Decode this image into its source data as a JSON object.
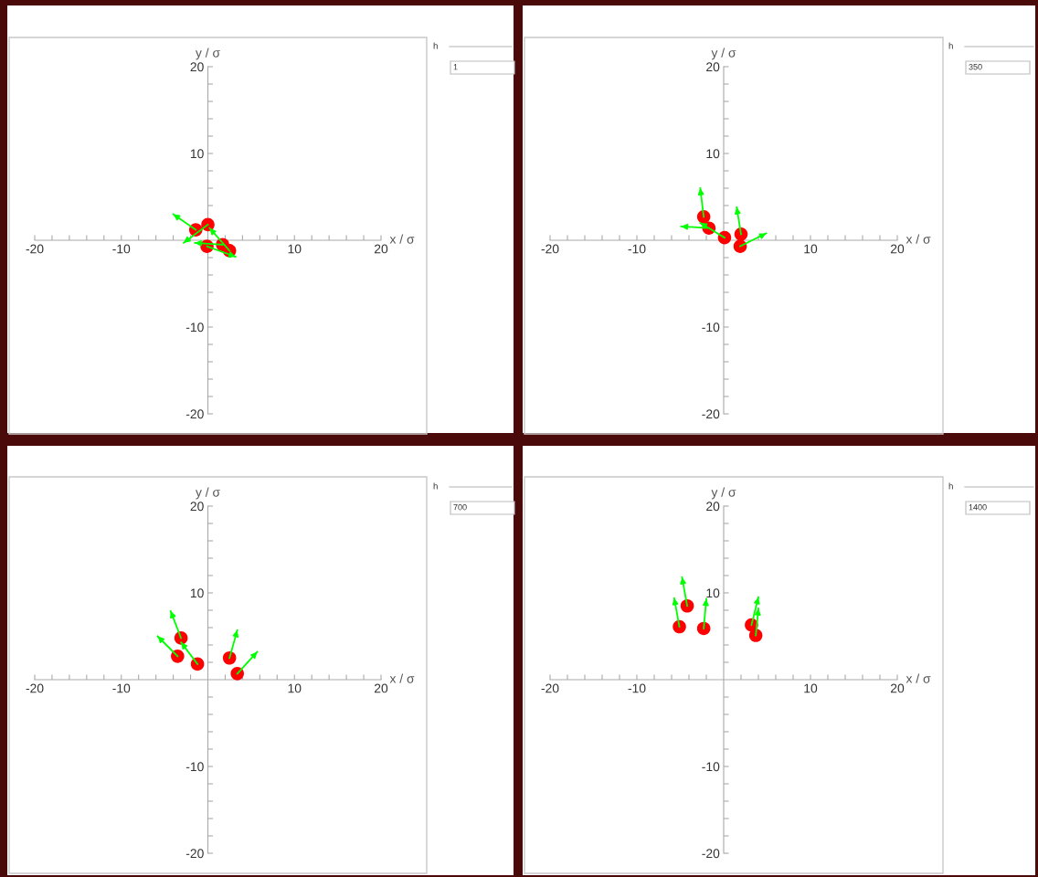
{
  "chart_data": [
    {
      "type": "scatter",
      "xlabel": "x / σ",
      "ylabel": "y / σ",
      "xlim": [
        -20,
        20
      ],
      "ylim": [
        -20,
        20
      ],
      "xticks": [
        -20,
        {
          "value": -18,
          "label": null
        },
        {
          "value": -16,
          "label": null
        },
        {
          "value": -14,
          "label": null
        },
        {
          "value": -12,
          "label": null
        },
        -10,
        {
          "value": -8,
          "label": null
        },
        {
          "value": -6,
          "label": null
        },
        {
          "value": -4,
          "label": null
        },
        {
          "value": -2,
          "label": null
        },
        {
          "value": 2,
          "label": null
        },
        {
          "value": 4,
          "label": null
        },
        {
          "value": 6,
          "label": null
        },
        {
          "value": 8,
          "label": null
        },
        10,
        {
          "value": 12,
          "label": null
        },
        {
          "value": 14,
          "label": null
        },
        {
          "value": 16,
          "label": null
        },
        {
          "value": 18,
          "label": null
        },
        20
      ],
      "yticks": [
        -20,
        {
          "value": -18,
          "label": null
        },
        {
          "value": -16,
          "label": null
        },
        {
          "value": -14,
          "label": null
        },
        {
          "value": -12,
          "label": null
        },
        -10,
        {
          "value": -8,
          "label": null
        },
        {
          "value": -6,
          "label": null
        },
        {
          "value": -4,
          "label": null
        },
        {
          "value": -2,
          "label": null
        },
        {
          "value": 2,
          "label": null
        },
        {
          "value": 4,
          "label": null
        },
        {
          "value": 6,
          "label": null
        },
        {
          "value": 8,
          "label": null
        },
        10,
        {
          "value": 12,
          "label": null
        },
        {
          "value": 14,
          "label": null
        },
        {
          "value": 16,
          "label": null
        },
        {
          "value": 18,
          "label": null
        },
        20
      ],
      "grid": false,
      "annotations": [
        "h",
        "1"
      ],
      "series": [
        {
          "type": "line",
          "color": "#00ff00",
          "x": [
            -1.4,
            -4.0,
            null,
            0,
            -2.8,
            null,
            -0.1,
            3.2,
            null,
            1.7,
            -1.5,
            null,
            2.5,
            0.2
          ],
          "values": [
            1.2,
            3.0,
            null,
            1.8,
            -0.3,
            null,
            -0.7,
            -1.9,
            null,
            -0.5,
            -0.3,
            null,
            -1.2,
            1.4
          ]
        },
        {
          "type": "scatter",
          "marker": "circle",
          "color": "#ff0000",
          "x": [
            -1.4,
            0,
            -0.1,
            1.7,
            2.5
          ],
          "values": [
            1.2,
            1.8,
            -0.7,
            -0.5,
            -1.2
          ]
        }
      ]
    },
    {
      "type": "scatter",
      "xlabel": "x / σ",
      "ylabel": "y / σ",
      "xlim": [
        -20,
        20
      ],
      "ylim": [
        -20,
        20
      ],
      "xticks": [
        -20,
        {
          "value": -18,
          "label": null
        },
        {
          "value": -16,
          "label": null
        },
        {
          "value": -14,
          "label": null
        },
        {
          "value": -12,
          "label": null
        },
        -10,
        {
          "value": -8,
          "label": null
        },
        {
          "value": -6,
          "label": null
        },
        {
          "value": -4,
          "label": null
        },
        {
          "value": -2,
          "label": null
        },
        {
          "value": 2,
          "label": null
        },
        {
          "value": 4,
          "label": null
        },
        {
          "value": 6,
          "label": null
        },
        {
          "value": 8,
          "label": null
        },
        10,
        {
          "value": 12,
          "label": null
        },
        {
          "value": 14,
          "label": null
        },
        {
          "value": 16,
          "label": null
        },
        {
          "value": 18,
          "label": null
        },
        20
      ],
      "yticks": [
        -20,
        {
          "value": -18,
          "label": null
        },
        {
          "value": -16,
          "label": null
        },
        {
          "value": -14,
          "label": null
        },
        {
          "value": -12,
          "label": null
        },
        -10,
        {
          "value": -8,
          "label": null
        },
        {
          "value": -6,
          "label": null
        },
        {
          "value": -4,
          "label": null
        },
        {
          "value": -2,
          "label": null
        },
        {
          "value": 2,
          "label": null
        },
        {
          "value": 4,
          "label": null
        },
        {
          "value": 6,
          "label": null
        },
        {
          "value": 8,
          "label": null
        },
        10,
        {
          "value": 12,
          "label": null
        },
        {
          "value": 14,
          "label": null
        },
        {
          "value": 16,
          "label": null
        },
        {
          "value": 18,
          "label": null
        },
        20
      ],
      "grid": false,
      "annotations": [
        "h",
        "350"
      ],
      "series": [
        {
          "type": "line",
          "color": "#00ff00",
          "x": [
            -2.3,
            -2.7,
            null,
            -1.7,
            -4.9,
            null,
            0.1,
            -2.7,
            null,
            2.0,
            1.5,
            null,
            1.9,
            4.9
          ],
          "values": [
            2.7,
            6.0,
            null,
            1.4,
            1.6,
            null,
            0.3,
            2.0,
            null,
            0.7,
            3.8,
            null,
            -0.7,
            0.8
          ]
        },
        {
          "type": "scatter",
          "marker": "circle",
          "color": "#ff0000",
          "x": [
            -2.3,
            -1.7,
            0.1,
            2.0,
            1.9
          ],
          "values": [
            2.7,
            1.4,
            0.3,
            0.7,
            -0.7
          ]
        }
      ]
    },
    {
      "type": "scatter",
      "xlabel": "x / σ",
      "ylabel": "y / σ",
      "xlim": [
        -20,
        20
      ],
      "ylim": [
        -20,
        20
      ],
      "xticks": [
        -20,
        {
          "value": -18,
          "label": null
        },
        {
          "value": -16,
          "label": null
        },
        {
          "value": -14,
          "label": null
        },
        {
          "value": -12,
          "label": null
        },
        -10,
        {
          "value": -8,
          "label": null
        },
        {
          "value": -6,
          "label": null
        },
        {
          "value": -4,
          "label": null
        },
        {
          "value": -2,
          "label": null
        },
        {
          "value": 2,
          "label": null
        },
        {
          "value": 4,
          "label": null
        },
        {
          "value": 6,
          "label": null
        },
        {
          "value": 8,
          "label": null
        },
        10,
        {
          "value": 12,
          "label": null
        },
        {
          "value": 14,
          "label": null
        },
        {
          "value": 16,
          "label": null
        },
        {
          "value": 18,
          "label": null
        },
        20
      ],
      "yticks": [
        -20,
        {
          "value": -18,
          "label": null
        },
        {
          "value": -16,
          "label": null
        },
        {
          "value": -14,
          "label": null
        },
        {
          "value": -12,
          "label": null
        },
        -10,
        {
          "value": -8,
          "label": null
        },
        {
          "value": -6,
          "label": null
        },
        {
          "value": -4,
          "label": null
        },
        {
          "value": -2,
          "label": null
        },
        {
          "value": 2,
          "label": null
        },
        {
          "value": 4,
          "label": null
        },
        {
          "value": 6,
          "label": null
        },
        {
          "value": 8,
          "label": null
        },
        10,
        {
          "value": 12,
          "label": null
        },
        {
          "value": 14,
          "label": null
        },
        {
          "value": 16,
          "label": null
        },
        {
          "value": 18,
          "label": null
        },
        20
      ],
      "grid": false,
      "annotations": [
        "h",
        "700"
      ],
      "series": [
        {
          "type": "line",
          "color": "#00ff00",
          "x": [
            -3.1,
            -4.3,
            null,
            -3.5,
            -5.8,
            null,
            -1.2,
            -3.1,
            null,
            2.5,
            3.4,
            null,
            3.4,
            5.7
          ],
          "values": [
            4.8,
            7.9,
            null,
            2.7,
            5.0,
            null,
            1.8,
            4.3,
            null,
            2.5,
            5.7,
            null,
            0.7,
            3.2
          ]
        },
        {
          "type": "scatter",
          "marker": "circle",
          "color": "#ff0000",
          "x": [
            -3.1,
            -3.5,
            -1.2,
            2.5,
            3.4
          ],
          "values": [
            4.8,
            2.7,
            1.8,
            2.5,
            0.7
          ]
        }
      ]
    },
    {
      "type": "scatter",
      "xlabel": "x / σ",
      "ylabel": "y / σ",
      "xlim": [
        -20,
        20
      ],
      "ylim": [
        -20,
        20
      ],
      "xticks": [
        -20,
        {
          "value": -18,
          "label": null
        },
        {
          "value": -16,
          "label": null
        },
        {
          "value": -14,
          "label": null
        },
        {
          "value": -12,
          "label": null
        },
        -10,
        {
          "value": -8,
          "label": null
        },
        {
          "value": -6,
          "label": null
        },
        {
          "value": -4,
          "label": null
        },
        {
          "value": -2,
          "label": null
        },
        {
          "value": 2,
          "label": null
        },
        {
          "value": 4,
          "label": null
        },
        {
          "value": 6,
          "label": null
        },
        {
          "value": 8,
          "label": null
        },
        10,
        {
          "value": 12,
          "label": null
        },
        {
          "value": 14,
          "label": null
        },
        {
          "value": 16,
          "label": null
        },
        {
          "value": 18,
          "label": null
        },
        20
      ],
      "yticks": [
        -20,
        {
          "value": -18,
          "label": null
        },
        {
          "value": -16,
          "label": null
        },
        {
          "value": -14,
          "label": null
        },
        {
          "value": -12,
          "label": null
        },
        -10,
        {
          "value": -8,
          "label": null
        },
        {
          "value": -6,
          "label": null
        },
        {
          "value": -4,
          "label": null
        },
        {
          "value": -2,
          "label": null
        },
        {
          "value": 2,
          "label": null
        },
        {
          "value": 4,
          "label": null
        },
        {
          "value": 6,
          "label": null
        },
        {
          "value": 8,
          "label": null
        },
        10,
        {
          "value": 12,
          "label": null
        },
        {
          "value": 14,
          "label": null
        },
        {
          "value": 16,
          "label": null
        },
        {
          "value": 18,
          "label": null
        },
        20
      ],
      "grid": false,
      "annotations": [
        "h",
        "1400"
      ],
      "series": [
        {
          "type": "line",
          "color": "#00ff00",
          "x": [
            -4.2,
            -4.8,
            null,
            -5.1,
            -5.7,
            null,
            -2.3,
            -2.0,
            null,
            3.2,
            4.0,
            null,
            3.7,
            4.0
          ],
          "values": [
            8.5,
            11.8,
            null,
            6.1,
            9.4,
            null,
            5.9,
            9.3,
            null,
            6.3,
            9.5,
            null,
            5.1,
            8.2
          ]
        },
        {
          "type": "scatter",
          "marker": "circle",
          "color": "#ff0000",
          "x": [
            -4.2,
            -5.1,
            -2.3,
            3.2,
            3.7
          ],
          "values": [
            8.5,
            6.1,
            5.9,
            6.3,
            5.1
          ]
        }
      ]
    }
  ]
}
